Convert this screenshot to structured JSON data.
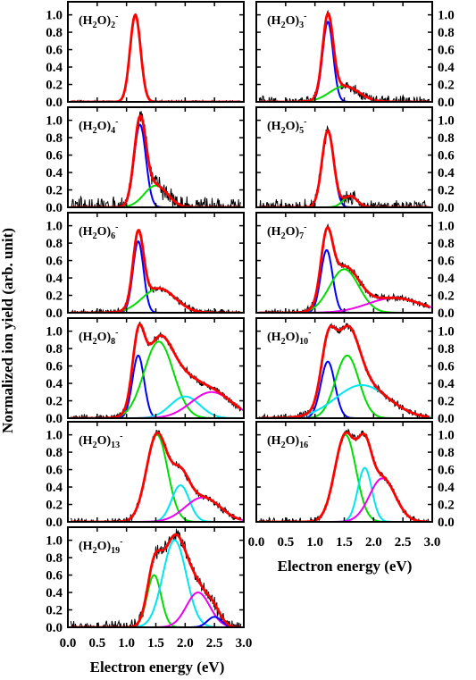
{
  "chart_data": {
    "type": "line",
    "xlabel": "Electron energy (eV)",
    "ylabel": "Normalized ion yield (arb. unit)",
    "xlim": [
      0,
      3
    ],
    "ylim": [
      0,
      1.15
    ],
    "x_ticks": [
      "0.0",
      "0.5",
      "1.0",
      "1.5",
      "2.0",
      "2.5",
      "3.0"
    ],
    "y_ticks": [
      "0.0",
      "0.2",
      "0.4",
      "0.6",
      "0.8",
      "1.0"
    ],
    "colors": {
      "data": "#000000",
      "fit": "#ff0000",
      "blue": "#0000ff",
      "green": "#00dd00",
      "cyan": "#00e5ee",
      "magenta": "#ee00ee"
    },
    "panels": [
      {
        "id": "n2",
        "label_main": "(H",
        "label_sub1": "2",
        "label_mid": "O)",
        "label_sub2": "2",
        "label_sup": "-",
        "components": [],
        "fit_peaks": [
          {
            "center": 1.15,
            "width": 0.09,
            "amp": 1.0
          }
        ],
        "noise": 0.02
      },
      {
        "id": "n3",
        "label_main": "(H",
        "label_sub1": "2",
        "label_mid": "O)",
        "label_sub2": "3",
        "label_sup": "-",
        "components": [
          {
            "color": "blue",
            "center": 1.22,
            "width": 0.09,
            "amp": 0.92
          },
          {
            "color": "green",
            "center": 1.5,
            "width": 0.25,
            "amp": 0.18
          }
        ],
        "noise": 0.08
      },
      {
        "id": "n4",
        "label_main": "(H",
        "label_sub1": "2",
        "label_mid": "O)",
        "label_sub2": "4",
        "label_sup": "-",
        "components": [
          {
            "color": "blue",
            "center": 1.23,
            "width": 0.1,
            "amp": 0.95
          },
          {
            "color": "green",
            "center": 1.5,
            "width": 0.2,
            "amp": 0.25
          }
        ],
        "noise": 0.14
      },
      {
        "id": "n5",
        "label_main": "(H",
        "label_sub1": "2",
        "label_mid": "O)",
        "label_sub2": "5",
        "label_sup": "-",
        "components": [
          {
            "color": "blue",
            "center": 1.22,
            "width": 0.1,
            "amp": 0.88
          },
          {
            "color": "green",
            "center": 1.6,
            "width": 0.12,
            "amp": 0.13
          }
        ],
        "noise": 0.1
      },
      {
        "id": "n6",
        "label_main": "(H",
        "label_sub1": "2",
        "label_mid": "O)",
        "label_sub2": "6",
        "label_sup": "-",
        "components": [
          {
            "color": "blue",
            "center": 1.2,
            "width": 0.09,
            "amp": 0.82
          },
          {
            "color": "green",
            "center": 1.55,
            "width": 0.28,
            "amp": 0.28
          }
        ],
        "noise": 0.05
      },
      {
        "id": "n7",
        "label_main": "(H",
        "label_sub1": "2",
        "label_mid": "O)",
        "label_sub2": "7",
        "label_sup": "-",
        "components": [
          {
            "color": "blue",
            "center": 1.2,
            "width": 0.1,
            "amp": 0.72
          },
          {
            "color": "green",
            "center": 1.5,
            "width": 0.25,
            "amp": 0.5
          },
          {
            "color": "magenta",
            "center": 2.35,
            "width": 0.45,
            "amp": 0.17
          }
        ],
        "noise": 0.05
      },
      {
        "id": "n8",
        "label_main": "(H",
        "label_sub1": "2",
        "label_mid": "O)",
        "label_sub2": "8",
        "label_sup": "-",
        "components": [
          {
            "color": "blue",
            "center": 1.2,
            "width": 0.1,
            "amp": 0.72
          },
          {
            "color": "green",
            "center": 1.55,
            "width": 0.25,
            "amp": 0.88
          },
          {
            "color": "cyan",
            "center": 2.0,
            "width": 0.25,
            "amp": 0.25
          },
          {
            "color": "magenta",
            "center": 2.45,
            "width": 0.35,
            "amp": 0.3
          }
        ],
        "noise": 0.05
      },
      {
        "id": "n10",
        "label_main": "(H",
        "label_sub1": "2",
        "label_mid": "O)",
        "label_sub2": "10",
        "label_sup": "-",
        "components": [
          {
            "color": "blue",
            "center": 1.22,
            "width": 0.12,
            "amp": 0.65
          },
          {
            "color": "green",
            "center": 1.55,
            "width": 0.2,
            "amp": 0.72
          },
          {
            "color": "cyan",
            "center": 1.8,
            "width": 0.45,
            "amp": 0.38
          }
        ],
        "noise": 0.05
      },
      {
        "id": "n13",
        "label_main": "(H",
        "label_sub1": "2",
        "label_mid": "O)",
        "label_sub2": "13",
        "label_sup": "-",
        "components": [
          {
            "color": "green",
            "center": 1.52,
            "width": 0.18,
            "amp": 1.0
          },
          {
            "color": "cyan",
            "center": 1.92,
            "width": 0.15,
            "amp": 0.42
          },
          {
            "color": "magenta",
            "center": 2.3,
            "width": 0.3,
            "amp": 0.28
          }
        ],
        "noise": 0.05
      },
      {
        "id": "n16",
        "label_main": "(H",
        "label_sub1": "2",
        "label_mid": "O)",
        "label_sub2": "16",
        "label_sup": "-",
        "components": [
          {
            "color": "green",
            "center": 1.52,
            "width": 0.18,
            "amp": 1.0
          },
          {
            "color": "cyan",
            "center": 1.85,
            "width": 0.12,
            "amp": 0.62
          },
          {
            "color": "magenta",
            "center": 2.15,
            "width": 0.22,
            "amp": 0.5
          }
        ],
        "noise": 0.05
      },
      {
        "id": "n19",
        "label_main": "(H",
        "label_sub1": "2",
        "label_mid": "O)",
        "label_sub2": "19",
        "label_sup": "-",
        "components": [
          {
            "color": "green",
            "center": 1.47,
            "width": 0.12,
            "amp": 0.6
          },
          {
            "color": "cyan",
            "center": 1.82,
            "width": 0.2,
            "amp": 1.0
          },
          {
            "color": "magenta",
            "center": 2.22,
            "width": 0.2,
            "amp": 0.4
          },
          {
            "color": "blue",
            "center": 2.5,
            "width": 0.12,
            "amp": 0.12
          }
        ],
        "noise": 0.1
      }
    ]
  }
}
